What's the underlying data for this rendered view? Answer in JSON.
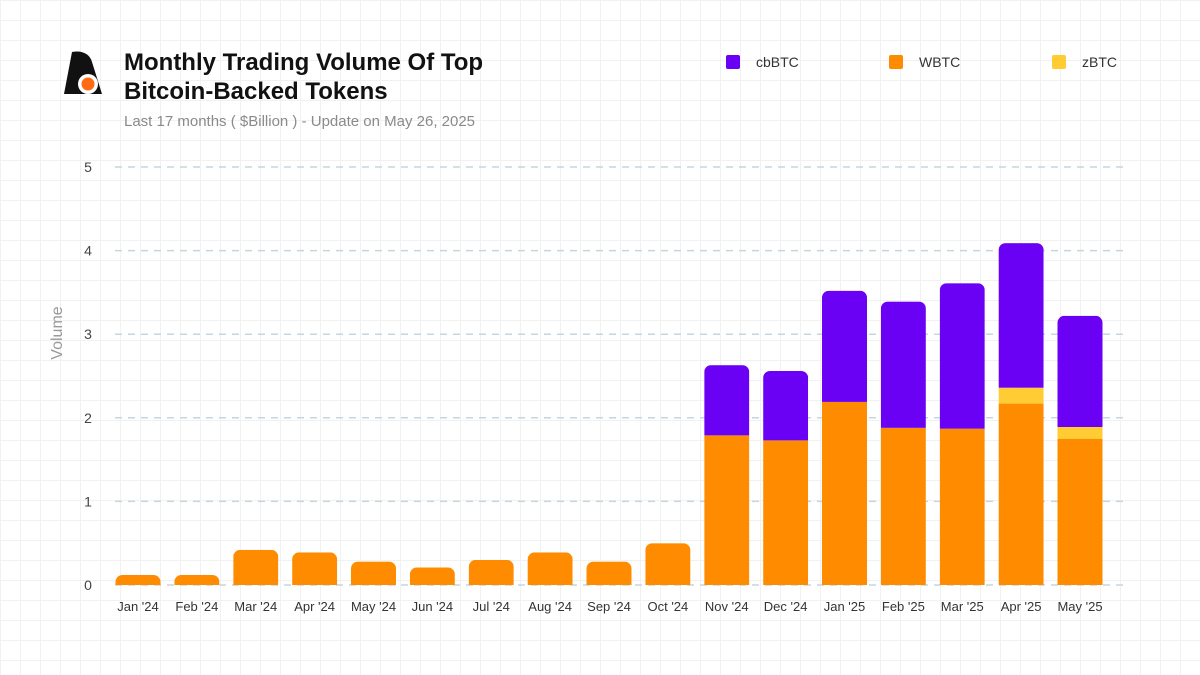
{
  "header": {
    "title_line1": "Monthly Trading Volume Of Top",
    "title_line2": "Bitcoin-Backed Tokens",
    "subtitle": "Last 17 months ( $Billion ) - Update on May 26, 2025"
  },
  "legend": [
    {
      "name": "cbBTC",
      "color": "#6a00f4"
    },
    {
      "name": "WBTC",
      "color": "#ff8c00"
    },
    {
      "name": "zBTC",
      "color": "#ffcc33"
    }
  ],
  "chart_data": {
    "type": "bar",
    "stacked": true,
    "title": "Monthly Trading Volume Of Top Bitcoin-Backed Tokens",
    "subtitle": "Last 17 months ( $Billion ) - Update on May 26, 2025",
    "xlabel": "",
    "ylabel": "Volume",
    "ylim": [
      0,
      5
    ],
    "yticks": [
      "0",
      "1",
      "2",
      "3",
      "4",
      "5"
    ],
    "grid": "horizontal dashed",
    "legend_position": "top-right",
    "categories": [
      "Jan '24",
      "Feb '24",
      "Mar '24",
      "Apr '24",
      "May '24",
      "Jun '24",
      "Jul '24",
      "Aug '24",
      "Sep '24",
      "Oct '24",
      "Nov '24",
      "Dec '24",
      "Jan '25",
      "Feb '25",
      "Mar '25",
      "Apr '25",
      "May '25"
    ],
    "series": [
      {
        "name": "WBTC",
        "color": "#ff8c00",
        "values": [
          0.12,
          0.12,
          0.42,
          0.39,
          0.28,
          0.21,
          0.3,
          0.39,
          0.28,
          0.5,
          1.79,
          1.73,
          2.19,
          1.88,
          1.87,
          2.17,
          1.75
        ]
      },
      {
        "name": "zBTC",
        "color": "#ffcc33",
        "values": [
          0,
          0,
          0,
          0,
          0,
          0,
          0,
          0,
          0,
          0,
          0,
          0,
          0,
          0,
          0,
          0.19,
          0.14
        ]
      },
      {
        "name": "cbBTC",
        "color": "#6a00f4",
        "values": [
          0,
          0,
          0,
          0,
          0,
          0,
          0,
          0,
          0,
          0,
          0.84,
          0.83,
          1.33,
          1.51,
          1.74,
          1.73,
          1.33
        ]
      }
    ]
  }
}
